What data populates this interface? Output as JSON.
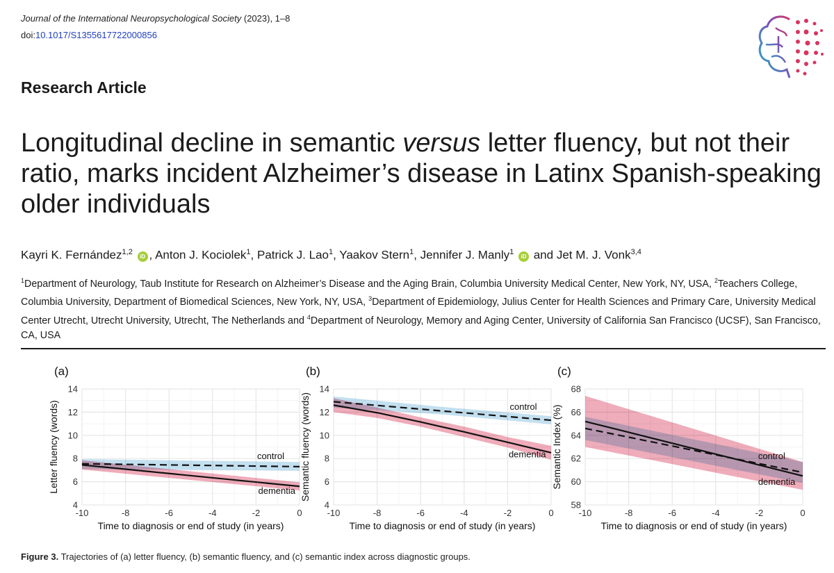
{
  "header": {
    "journal_name": "Journal of the International Neuropsychological Society",
    "journal_rest": " (2023), 1–8",
    "doi_prefix": "doi:",
    "doi_link": "10.1017/S1355617722000856"
  },
  "article_type": "Research Article",
  "title": {
    "part1": "Longitudinal decline in semantic ",
    "italic": "versus",
    "part2": " letter fluency, but not their ratio, marks incident Alzheimer’s disease in Latinx Spanish-speaking older individuals"
  },
  "authors": [
    {
      "name": "Kayri K. Fernández",
      "sup": "1,2",
      "orcid": true,
      "sep": ", "
    },
    {
      "name": "Anton J. Kociolek",
      "sup": "1",
      "orcid": false,
      "sep": ", "
    },
    {
      "name": "Patrick J. Lao",
      "sup": "1",
      "orcid": false,
      "sep": ", "
    },
    {
      "name": "Yaakov Stern",
      "sup": "1",
      "orcid": false,
      "sep": ", "
    },
    {
      "name": "Jennifer J. Manly",
      "sup": "1",
      "orcid": true,
      "sep": " and "
    },
    {
      "name": "Jet M. J. Vonk",
      "sup": "3,4",
      "orcid": false,
      "sep": ""
    }
  ],
  "orcid_label": "iD",
  "affiliations": [
    {
      "sup": "1",
      "text": "Department of Neurology, Taub Institute for Research on Alzheimer’s Disease and the Aging Brain, Columbia University Medical Center, New York, NY, USA, "
    },
    {
      "sup": "2",
      "text": "Teachers College, Columbia University, Department of Biomedical Sciences, New York, NY, USA, "
    },
    {
      "sup": "3",
      "text": "Department of Epidemiology, Julius Center for Health Sciences and Primary Care, University Medical Center Utrecht, Utrecht University, Utrecht, The Netherlands and "
    },
    {
      "sup": "4",
      "text": "Department of Neurology, Memory and Aging Center, University of California San Francisco (UCSF), San Francisco, CA, USA"
    }
  ],
  "figure_caption": {
    "label": "Figure 3.",
    "text": "Trajectories of (a) letter fluency, (b) semantic fluency, and (c) semantic index across diagnostic groups."
  },
  "colors": {
    "control_band": "#a9d3ea",
    "dementia_band": "#e8899c",
    "overlap": "#6f5577",
    "line": "#111111",
    "grid": "#e6e6e6"
  },
  "chart_data": [
    {
      "type": "line",
      "panel_label": "(a)",
      "xlabel": "Time to diagnosis or end of study (in years)",
      "ylabel": "Letter fluency (words)",
      "xlim": [
        -10,
        0
      ],
      "ylim": [
        4,
        14
      ],
      "xticks": [
        -10,
        -8,
        -6,
        -4,
        -2,
        0
      ],
      "yticks": [
        4,
        6,
        8,
        10,
        12,
        14
      ],
      "grid": true,
      "series": [
        {
          "name": "control",
          "style": "dashed",
          "x": [
            -10,
            0
          ],
          "y": [
            7.55,
            7.3
          ],
          "lower": [
            7.1,
            6.95
          ],
          "upper": [
            7.95,
            7.7
          ],
          "label_at": [
            -1.95,
            7.95
          ]
        },
        {
          "name": "dementia",
          "style": "solid",
          "x": [
            -10,
            0
          ],
          "y": [
            7.45,
            5.6
          ],
          "lower": [
            7.05,
            5.25
          ],
          "upper": [
            7.85,
            5.95
          ],
          "label_at": [
            -1.9,
            4.95
          ]
        }
      ]
    },
    {
      "type": "line",
      "panel_label": "(b)",
      "xlabel": "Time to diagnosis or end of study (in years)",
      "ylabel": "Semantic fluency (words)",
      "xlim": [
        -10,
        0
      ],
      "ylim": [
        4,
        14
      ],
      "xticks": [
        -10,
        -8,
        -6,
        -4,
        -2,
        0
      ],
      "yticks": [
        4,
        6,
        8,
        10,
        12,
        14
      ],
      "grid": true,
      "series": [
        {
          "name": "control",
          "style": "dashed",
          "x": [
            -10,
            -5,
            0
          ],
          "y": [
            12.9,
            12.1,
            11.3
          ],
          "lower": [
            12.4,
            11.8,
            10.95
          ],
          "upper": [
            13.35,
            12.45,
            11.65
          ],
          "label_at": [
            -1.9,
            12.2
          ]
        },
        {
          "name": "dementia",
          "style": "solid",
          "x": [
            -10,
            -8,
            -6,
            -4,
            -2,
            0
          ],
          "y": [
            12.6,
            11.95,
            11.15,
            10.3,
            9.4,
            8.5
          ],
          "lower": [
            12.0,
            11.5,
            10.75,
            9.85,
            8.95,
            7.9
          ],
          "upper": [
            13.2,
            12.4,
            11.55,
            10.75,
            9.85,
            9.1
          ],
          "label_at": [
            -1.95,
            8.1
          ]
        }
      ]
    },
    {
      "type": "line",
      "panel_label": "(c)",
      "xlabel": "Time to diagnosis or end of study (in years)",
      "ylabel": "Semantic Index (%)",
      "xlim": [
        -10,
        0
      ],
      "ylim": [
        58,
        68
      ],
      "xticks": [
        -10,
        -8,
        -6,
        -4,
        -2,
        0
      ],
      "yticks": [
        58,
        60,
        62,
        64,
        66,
        68
      ],
      "grid": true,
      "series": [
        {
          "name": "control",
          "style": "dashed",
          "x": [
            -10,
            0
          ],
          "y": [
            64.6,
            60.8
          ],
          "lower": [
            63.6,
            59.9
          ],
          "upper": [
            65.6,
            61.7
          ],
          "label_at": [
            -2.05,
            61.95
          ]
        },
        {
          "name": "dementia",
          "style": "solid",
          "x": [
            -10,
            0
          ],
          "y": [
            65.2,
            60.5
          ],
          "lower": [
            63.0,
            59.3
          ],
          "upper": [
            67.4,
            61.7
          ],
          "label_at": [
            -2.05,
            59.75
          ]
        }
      ]
    }
  ]
}
